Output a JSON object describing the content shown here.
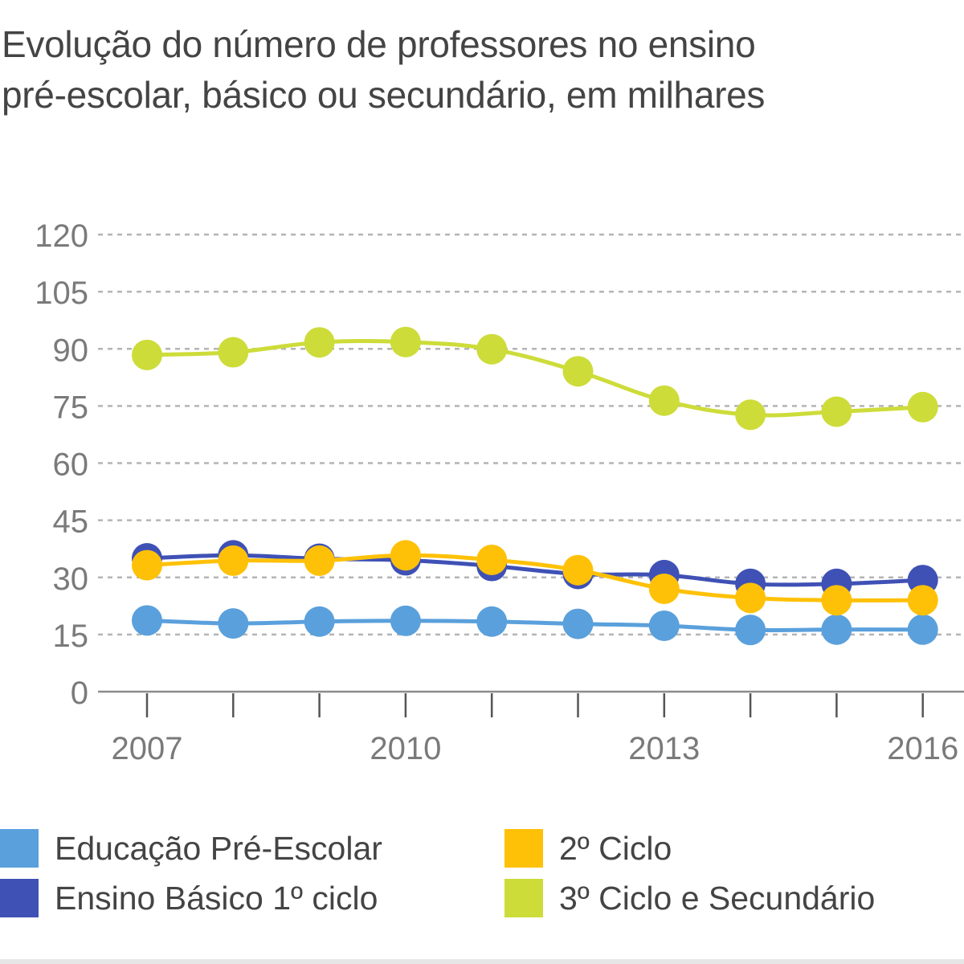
{
  "chart_data": {
    "type": "line",
    "title_lines": [
      "Evolução do número de professores no ensino",
      "pré-escolar, básico ou secundário, em milhares"
    ],
    "x": [
      2007,
      2008,
      2009,
      2010,
      2011,
      2012,
      2013,
      2014,
      2015,
      2016
    ],
    "x_tick_labels": [
      "2007",
      "2010",
      "2013",
      "2016"
    ],
    "y_ticks": [
      0,
      15,
      30,
      45,
      60,
      75,
      90,
      105,
      120
    ],
    "ylim": [
      0,
      120
    ],
    "grid": "horizontal dashed",
    "legend_position": "bottom",
    "series": [
      {
        "name": "Educação Pré-Escolar",
        "color": "#5aa0dc",
        "values": [
          18.7,
          17.9,
          18.4,
          18.6,
          18.4,
          17.8,
          17.3,
          16.2,
          16.3,
          16.3
        ]
      },
      {
        "name": "Ensino Básico 1º ciclo",
        "color": "#3f51b5",
        "values": [
          35.0,
          35.8,
          34.9,
          34.5,
          33.0,
          30.9,
          30.6,
          28.3,
          28.3,
          29.3
        ]
      },
      {
        "name": "2º Ciclo",
        "color": "#ffc107",
        "values": [
          33.2,
          34.4,
          34.4,
          35.8,
          34.6,
          31.9,
          27.0,
          24.6,
          24.0,
          24.0
        ]
      },
      {
        "name": "3º Ciclo e Secundário",
        "color": "#cddc39",
        "values": [
          88.4,
          89.1,
          91.7,
          91.8,
          89.9,
          84.1,
          76.4,
          72.7,
          73.5,
          74.7
        ]
      }
    ]
  }
}
